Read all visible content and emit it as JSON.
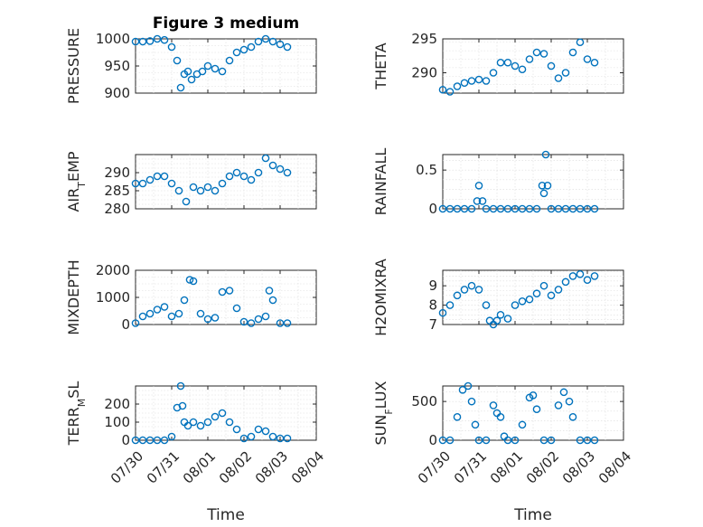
{
  "figure": {
    "title": "Figure 3 medium"
  },
  "chart_data": [
    {
      "type": "scatter",
      "title": "Figure 3 medium",
      "ylabel": "PRESSURE",
      "xlabel": "",
      "ylim": [
        900,
        1000
      ],
      "yticks": [
        900,
        950,
        1000
      ],
      "xlim": [
        0,
        5
      ],
      "color": "#0072BD",
      "grid": true,
      "x": [
        0,
        0.2,
        0.4,
        0.6,
        0.8,
        1.0,
        1.15,
        1.25,
        1.35,
        1.45,
        1.55,
        1.7,
        1.85,
        2.0,
        2.2,
        2.4,
        2.6,
        2.8,
        3.0,
        3.2,
        3.4,
        3.6,
        3.8,
        4.0,
        4.2
      ],
      "y": [
        995,
        995,
        996,
        1000,
        998,
        985,
        960,
        910,
        935,
        940,
        925,
        935,
        940,
        950,
        945,
        940,
        960,
        975,
        980,
        985,
        995,
        1000,
        995,
        990,
        985
      ]
    },
    {
      "type": "scatter",
      "title": "",
      "ylabel": "THETA",
      "xlabel": "",
      "ylim": [
        287,
        295
      ],
      "yticks": [
        290,
        295
      ],
      "xlim": [
        0,
        5
      ],
      "color": "#0072BD",
      "grid": true,
      "x": [
        0,
        0.2,
        0.4,
        0.6,
        0.8,
        1.0,
        1.2,
        1.4,
        1.6,
        1.8,
        2.0,
        2.2,
        2.4,
        2.6,
        2.8,
        3.0,
        3.2,
        3.4,
        3.6,
        3.8,
        4.0,
        4.2
      ],
      "y": [
        287.5,
        287.2,
        288,
        288.5,
        288.8,
        289,
        288.8,
        290,
        291.5,
        291.5,
        291,
        290.5,
        292,
        293,
        292.8,
        291,
        289.2,
        290,
        293,
        294.5,
        292,
        291.5
      ]
    },
    {
      "type": "scatter",
      "title": "",
      "ylabel": "AIR_TEMP",
      "xlabel": "",
      "ylim": [
        280,
        295
      ],
      "yticks": [
        280,
        285,
        290
      ],
      "xlim": [
        0,
        5
      ],
      "color": "#0072BD",
      "grid": true,
      "x": [
        0,
        0.2,
        0.4,
        0.6,
        0.8,
        1.0,
        1.2,
        1.4,
        1.6,
        1.8,
        2.0,
        2.2,
        2.4,
        2.6,
        2.8,
        3.0,
        3.2,
        3.4,
        3.6,
        3.8,
        4.0,
        4.2
      ],
      "y": [
        287,
        287,
        288,
        289,
        289,
        287,
        285,
        282,
        286,
        285,
        286,
        285,
        287,
        289,
        290,
        289,
        288,
        290,
        294,
        292,
        291,
        290
      ]
    },
    {
      "type": "scatter",
      "title": "",
      "ylabel": "RAINFALL",
      "xlabel": "",
      "ylim": [
        0,
        0.7
      ],
      "yticks": [
        0,
        0.5
      ],
      "xlim": [
        0,
        5
      ],
      "color": "#0072BD",
      "grid": true,
      "x": [
        0,
        0.2,
        0.4,
        0.6,
        0.8,
        0.95,
        1.0,
        1.1,
        1.2,
        1.4,
        1.6,
        1.8,
        2.0,
        2.2,
        2.4,
        2.6,
        2.75,
        2.8,
        2.85,
        2.9,
        3.0,
        3.2,
        3.4,
        3.6,
        3.8,
        4.0,
        4.2
      ],
      "y": [
        0,
        0,
        0,
        0,
        0,
        0.1,
        0.3,
        0.1,
        0,
        0,
        0,
        0,
        0,
        0,
        0,
        0,
        0.3,
        0.2,
        0.7,
        0.3,
        0,
        0,
        0,
        0,
        0,
        0,
        0
      ]
    },
    {
      "type": "scatter",
      "title": "",
      "ylabel": "MIXDEPTH",
      "xlabel": "",
      "ylim": [
        0,
        2000
      ],
      "yticks": [
        0,
        1000,
        2000
      ],
      "xlim": [
        0,
        5
      ],
      "color": "#0072BD",
      "grid": true,
      "x": [
        0,
        0.2,
        0.4,
        0.6,
        0.8,
        1.0,
        1.2,
        1.35,
        1.5,
        1.6,
        1.8,
        2.0,
        2.2,
        2.4,
        2.6,
        2.8,
        3.0,
        3.2,
        3.4,
        3.6,
        3.7,
        3.8,
        4.0,
        4.2
      ],
      "y": [
        50,
        300,
        400,
        550,
        650,
        300,
        400,
        900,
        1650,
        1600,
        400,
        200,
        250,
        1200,
        1250,
        600,
        100,
        50,
        200,
        300,
        1250,
        900,
        50,
        50
      ]
    },
    {
      "type": "scatter",
      "title": "",
      "ylabel": "H2OMIXRA",
      "xlabel": "",
      "ylim": [
        7,
        9.8
      ],
      "yticks": [
        7,
        8,
        9
      ],
      "xlim": [
        0,
        5
      ],
      "color": "#0072BD",
      "grid": true,
      "x": [
        0,
        0.2,
        0.4,
        0.6,
        0.8,
        1.0,
        1.2,
        1.3,
        1.4,
        1.5,
        1.6,
        1.8,
        2.0,
        2.2,
        2.4,
        2.6,
        2.8,
        3.0,
        3.2,
        3.4,
        3.6,
        3.8,
        4.0,
        4.2
      ],
      "y": [
        7.6,
        8.0,
        8.5,
        8.8,
        9.0,
        8.8,
        8.0,
        7.2,
        7.0,
        7.2,
        7.5,
        7.3,
        8.0,
        8.2,
        8.3,
        8.6,
        9.0,
        8.5,
        8.8,
        9.2,
        9.5,
        9.6,
        9.3,
        9.5
      ]
    },
    {
      "type": "scatter",
      "title": "",
      "ylabel": "TERR_MSL",
      "xlabel": "Time",
      "ylim": [
        0,
        300
      ],
      "yticks": [
        0,
        100,
        200
      ],
      "xlim": [
        0,
        5
      ],
      "color": "#0072BD",
      "grid": true,
      "xticks": [
        0,
        1,
        2,
        3,
        4,
        5
      ],
      "xticklabels": [
        "07/30",
        "07/31",
        "08/01",
        "08/02",
        "08/03",
        "08/04"
      ],
      "x": [
        0,
        0.2,
        0.4,
        0.6,
        0.8,
        1.0,
        1.15,
        1.25,
        1.3,
        1.35,
        1.45,
        1.6,
        1.8,
        2.0,
        2.2,
        2.4,
        2.6,
        2.8,
        3.0,
        3.2,
        3.4,
        3.6,
        3.8,
        4.0,
        4.2
      ],
      "y": [
        0,
        0,
        0,
        0,
        0,
        20,
        180,
        310,
        190,
        100,
        80,
        100,
        80,
        100,
        130,
        150,
        100,
        60,
        10,
        20,
        60,
        50,
        20,
        10,
        10
      ]
    },
    {
      "type": "scatter",
      "title": "",
      "ylabel": "SUN_FLUX",
      "xlabel": "Time",
      "ylim": [
        0,
        700
      ],
      "yticks": [
        0,
        500
      ],
      "xlim": [
        0,
        5
      ],
      "color": "#0072BD",
      "grid": true,
      "xticks": [
        0,
        1,
        2,
        3,
        4,
        5
      ],
      "xticklabels": [
        "07/30",
        "07/31",
        "08/01",
        "08/02",
        "08/03",
        "08/04"
      ],
      "x": [
        0,
        0.2,
        0.4,
        0.55,
        0.7,
        0.8,
        0.9,
        1.0,
        1.2,
        1.4,
        1.5,
        1.6,
        1.7,
        1.8,
        2.0,
        2.2,
        2.4,
        2.5,
        2.6,
        2.8,
        3.0,
        3.2,
        3.35,
        3.5,
        3.6,
        3.8,
        4.0,
        4.2
      ],
      "y": [
        0,
        0,
        300,
        650,
        700,
        500,
        200,
        0,
        0,
        450,
        350,
        300,
        50,
        0,
        0,
        200,
        550,
        580,
        400,
        0,
        0,
        450,
        620,
        500,
        300,
        0,
        0,
        0
      ]
    }
  ]
}
